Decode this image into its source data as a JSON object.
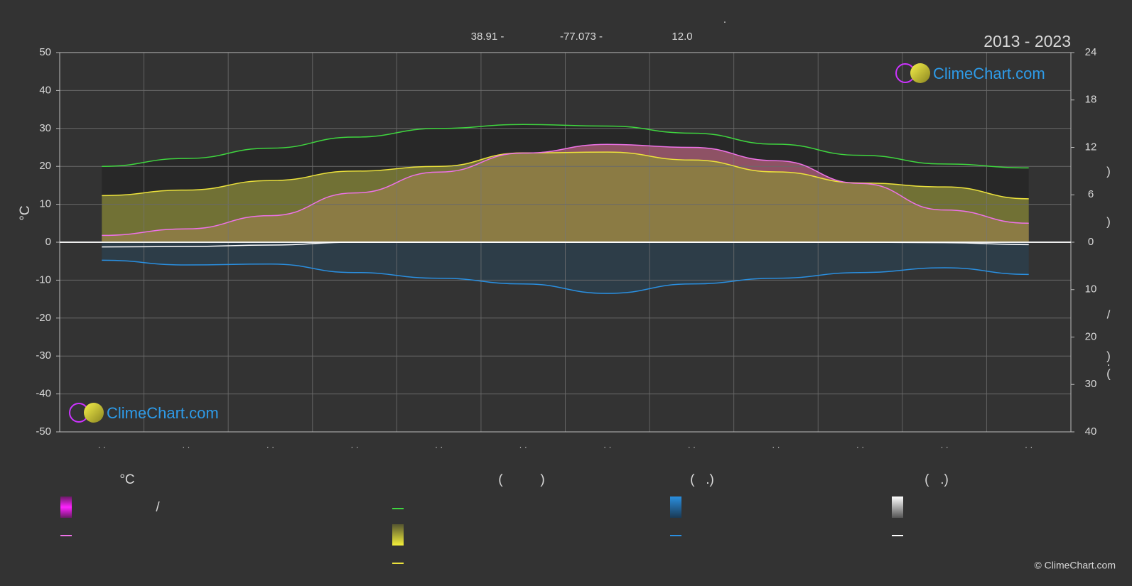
{
  "header": {
    "dot": ".",
    "lat": "38.91 -",
    "lon": "-77.073 -",
    "elev": "12.0",
    "period": "2013 - 2023"
  },
  "chart_data": {
    "type": "line",
    "categories": [
      "· ·",
      "· ·",
      "· ·",
      "· ·",
      "· ·",
      "· ·",
      "· ·",
      "· ·",
      "· ·",
      "· ·",
      "· ·",
      "· ·"
    ],
    "ylabel": "°C",
    "ylim": [
      -50,
      50
    ],
    "yticks": [
      -50,
      -40,
      -30,
      -20,
      -10,
      0,
      10,
      20,
      30,
      40,
      50
    ],
    "y2lim": [
      0,
      24
    ],
    "y2ticks": [
      0,
      6,
      12,
      18,
      24
    ],
    "y3lim": [
      0,
      40
    ],
    "y3ticks": [
      10,
      20,
      30,
      40
    ],
    "y2label_parts": [
      ")",
      ")",
      "/",
      ")",
      "·",
      "("
    ],
    "grid": true,
    "series": [
      {
        "color": "#3fd63f",
        "axis": "y2",
        "fill": "#262626",
        "values": [
          9.6,
          10.6,
          11.9,
          13.3,
          14.4,
          14.9,
          14.7,
          13.8,
          12.4,
          11.0,
          9.9,
          9.4
        ]
      },
      {
        "color": "#ece23c",
        "axis": "y2",
        "fill": "#8a8a3a",
        "values": [
          5.9,
          6.6,
          7.8,
          9.0,
          9.6,
          11.3,
          11.4,
          10.4,
          8.9,
          7.5,
          7.0,
          5.5
        ]
      },
      {
        "color": "#ee72e8",
        "axis": "y",
        "fill": "#b0607a",
        "values": [
          1.8,
          3.5,
          7.0,
          13.0,
          18.5,
          23.5,
          25.8,
          25.0,
          21.5,
          15.5,
          8.5,
          5.0
        ]
      },
      {
        "color": "#2a8fe0",
        "axis": "y3",
        "fill": "#2c4150",
        "values": [
          3.8,
          4.8,
          4.6,
          6.4,
          7.6,
          8.8,
          10.8,
          8.8,
          7.6,
          6.4,
          5.4,
          6.8
        ]
      },
      {
        "color": "#ffffff",
        "axis": "y3",
        "values": [
          1.0,
          0.9,
          0.6,
          0,
          0,
          0,
          0,
          0,
          0,
          0,
          0.1,
          0.5
        ]
      }
    ]
  },
  "legend": {
    "headers": [
      "°C",
      "(          )",
      "(   .)",
      "(   .)"
    ],
    "separator": "/"
  },
  "logo": "ClimeChart.com",
  "copyright": "© ClimeChart.com"
}
